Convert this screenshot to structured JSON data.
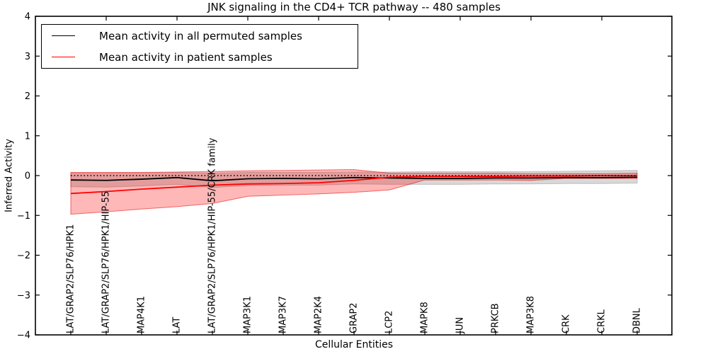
{
  "figure": {
    "title": "JNK signaling in the CD4+ TCR pathway -- 480 samples",
    "xlabel": "Cellular Entities",
    "ylabel": "Inferred Activity"
  },
  "legend": {
    "position": "upper left",
    "entries": [
      {
        "label": "Mean activity in all permuted samples",
        "color": "#000000"
      },
      {
        "label": "Mean activity in patient samples",
        "color": "#ff0000"
      }
    ]
  },
  "chart_data": {
    "type": "line",
    "title": "JNK signaling in the CD4+ TCR pathway -- 480 samples",
    "xlabel": "Cellular Entities",
    "ylabel": "Inferred Activity",
    "ylim": [
      -4,
      4
    ],
    "y_ticks": [
      -4,
      -3,
      -2,
      -1,
      0,
      1,
      2,
      3,
      4
    ],
    "grid": false,
    "legend_position": "upper left",
    "zero_line": {
      "y": 0,
      "style": "dotted",
      "color": "#000000"
    },
    "categories": [
      "LAT/GRAP2/SLP76/HPK1",
      "LAT/GRAP2/SLP76/HPK1/HIP-55",
      "MAP4K1",
      "LAT",
      "LAT/GRAP2/SLP76/HPK1/HIP-55/CRK family",
      "MAP3K1",
      "MAP3K7",
      "MAP2K4",
      "GRAP2",
      "LCP2",
      "MAPK8",
      "JUN",
      "PRKCB",
      "MAP3K8",
      "CRK",
      "CRKL",
      "DBNL"
    ],
    "series": [
      {
        "name": "Mean activity in all permuted samples",
        "color": "#000000",
        "band_color": "rgba(125,125,125,0.30)",
        "band_edge_color": "rgba(60,60,60,0.25)",
        "values": [
          -0.11,
          -0.12,
          -0.09,
          -0.05,
          -0.13,
          -0.08,
          -0.07,
          -0.08,
          -0.05,
          -0.06,
          -0.07,
          -0.07,
          -0.06,
          -0.06,
          -0.05,
          -0.05,
          -0.04
        ],
        "band_upper": [
          0.06,
          0.06,
          0.07,
          0.08,
          0.06,
          0.08,
          0.08,
          0.08,
          0.09,
          0.09,
          0.1,
          0.1,
          0.1,
          0.1,
          0.11,
          0.12,
          0.13
        ],
        "band_lower": [
          -0.28,
          -0.29,
          -0.26,
          -0.22,
          -0.3,
          -0.25,
          -0.24,
          -0.24,
          -0.21,
          -0.22,
          -0.22,
          -0.22,
          -0.21,
          -0.21,
          -0.2,
          -0.2,
          -0.19
        ]
      },
      {
        "name": "Mean activity in patient samples",
        "color": "#ff0000",
        "band_color": "rgba(255,0,0,0.28)",
        "band_edge_color": "rgba(230,0,0,0.55)",
        "values": [
          -0.45,
          -0.4,
          -0.34,
          -0.29,
          -0.24,
          -0.21,
          -0.2,
          -0.18,
          -0.12,
          -0.04,
          -0.02,
          -0.02,
          -0.02,
          -0.01,
          -0.01,
          0.0,
          0.0
        ],
        "band_upper": [
          0.08,
          0.08,
          0.08,
          0.09,
          0.1,
          0.12,
          0.13,
          0.14,
          0.15,
          0.06,
          0.06,
          0.06,
          0.06,
          0.05,
          0.05,
          0.05,
          0.06
        ],
        "band_lower": [
          -0.97,
          -0.91,
          -0.84,
          -0.78,
          -0.7,
          -0.52,
          -0.49,
          -0.46,
          -0.42,
          -0.36,
          -0.11,
          -0.11,
          -0.11,
          -0.12,
          -0.07,
          -0.07,
          -0.07
        ]
      }
    ]
  }
}
